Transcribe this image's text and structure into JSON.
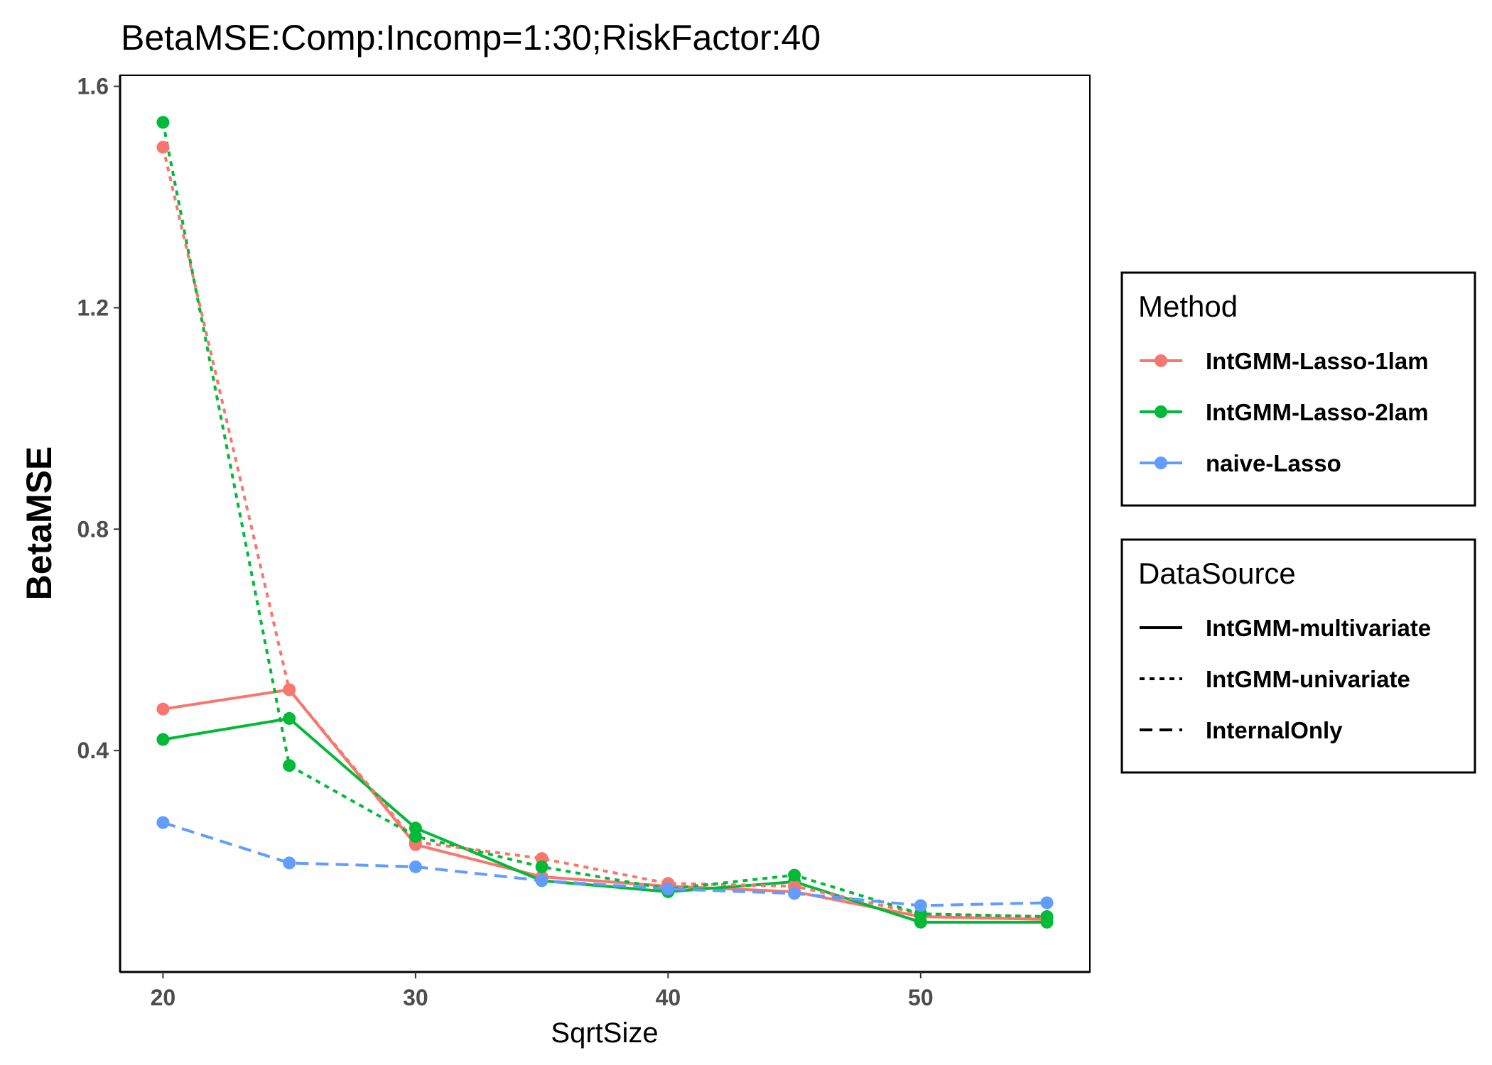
{
  "chart_data": {
    "type": "line",
    "title": "BetaMSE:Comp:Incomp=1:30;RiskFactor:40",
    "xlabel": "SqrtSize",
    "ylabel": "BetaMSE",
    "xlim": [
      18.3,
      56.7
    ],
    "ylim": [
      0.0,
      1.62
    ],
    "x_ticks": [
      20,
      30,
      40,
      50
    ],
    "y_ticks": [
      0.4,
      0.8,
      1.2,
      1.6
    ],
    "x_tick_labels": [
      "20",
      "30",
      "40",
      "50"
    ],
    "y_tick_labels": [
      "0.4",
      "0.8",
      "1.2",
      "1.6"
    ],
    "grid": false,
    "legend_placement": "right",
    "colors": {
      "IntGMM-Lasso-1lam": "#F8766D",
      "IntGMM-Lasso-2lam": "#00BA38",
      "naive-Lasso": "#619CFF"
    },
    "legends": {
      "method": {
        "title": "Method",
        "items": [
          "IntGMM-Lasso-1lam",
          "IntGMM-Lasso-2lam",
          "naive-Lasso"
        ]
      },
      "datasource": {
        "title": "DataSource",
        "items": [
          "IntGMM-multivariate",
          "IntGMM-univariate",
          "InternalOnly"
        ]
      }
    },
    "series": [
      {
        "method": "IntGMM-Lasso-1lam",
        "source": "IntGMM-multivariate",
        "x": [
          20,
          25,
          30,
          35,
          40,
          45,
          50,
          55
        ],
        "y": [
          0.475,
          0.51,
          0.23,
          0.172,
          0.155,
          0.145,
          0.1,
          0.095
        ]
      },
      {
        "method": "IntGMM-Lasso-2lam",
        "source": "IntGMM-multivariate",
        "x": [
          20,
          25,
          30,
          35,
          40,
          45,
          50,
          55
        ],
        "y": [
          0.42,
          0.458,
          0.26,
          0.165,
          0.145,
          0.163,
          0.09,
          0.09
        ]
      },
      {
        "method": "IntGMM-Lasso-1lam",
        "source": "IntGMM-univariate",
        "x": [
          20,
          25,
          30,
          35,
          40,
          45,
          50,
          55
        ],
        "y": [
          1.49,
          0.51,
          0.235,
          0.205,
          0.16,
          0.155,
          0.105,
          0.1
        ]
      },
      {
        "method": "IntGMM-Lasso-2lam",
        "source": "IntGMM-univariate",
        "x": [
          20,
          25,
          30,
          35,
          40,
          45,
          50,
          55
        ],
        "y": [
          1.535,
          0.373,
          0.245,
          0.19,
          0.15,
          0.175,
          0.105,
          0.1
        ]
      },
      {
        "method": "naive-Lasso",
        "source": "InternalOnly",
        "x": [
          20,
          25,
          30,
          35,
          40,
          45,
          50,
          55
        ],
        "y": [
          0.27,
          0.197,
          0.19,
          0.165,
          0.15,
          0.142,
          0.12,
          0.125
        ]
      }
    ]
  }
}
